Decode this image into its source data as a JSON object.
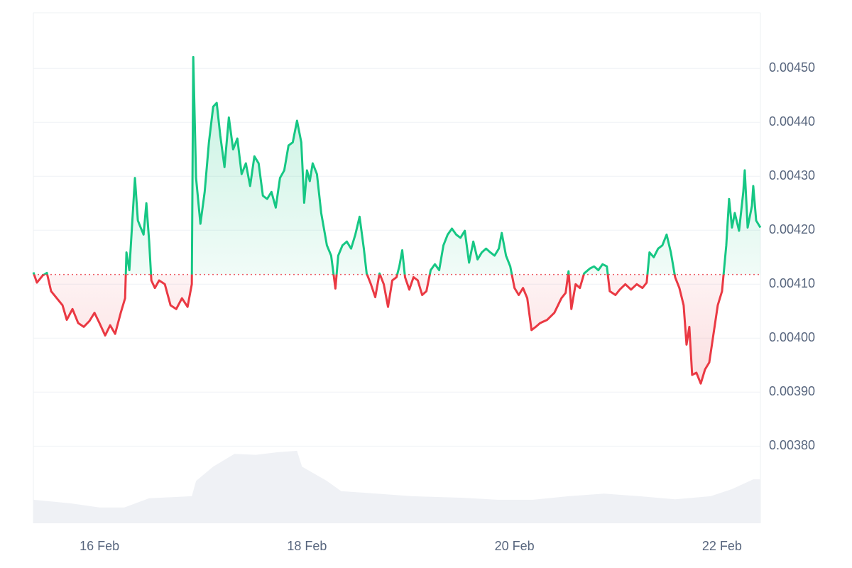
{
  "chart_data": {
    "type": "line",
    "x": [
      15.363,
      15.397,
      15.452,
      15.493,
      15.534,
      15.589,
      15.644,
      15.685,
      15.74,
      15.795,
      15.849,
      15.904,
      15.952,
      16.0,
      16.055,
      16.103,
      16.151,
      16.205,
      16.247,
      16.26,
      16.288,
      16.315,
      16.342,
      16.37,
      16.397,
      16.425,
      16.452,
      16.479,
      16.5,
      16.534,
      16.575,
      16.63,
      16.685,
      16.74,
      16.795,
      16.849,
      16.89,
      16.904,
      16.931,
      16.973,
      17.014,
      17.055,
      17.096,
      17.13,
      17.164,
      17.205,
      17.247,
      17.288,
      17.329,
      17.37,
      17.411,
      17.452,
      17.493,
      17.534,
      17.575,
      17.616,
      17.658,
      17.699,
      17.74,
      17.781,
      17.822,
      17.863,
      17.904,
      17.945,
      17.973,
      18.0,
      18.027,
      18.055,
      18.096,
      18.137,
      18.192,
      18.233,
      18.274,
      18.301,
      18.342,
      18.384,
      18.425,
      18.466,
      18.507,
      18.548,
      18.575,
      18.616,
      18.658,
      18.699,
      18.74,
      18.781,
      18.822,
      18.863,
      18.89,
      18.918,
      18.945,
      18.986,
      19.027,
      19.068,
      19.11,
      19.151,
      19.192,
      19.233,
      19.274,
      19.315,
      19.356,
      19.397,
      19.438,
      19.479,
      19.521,
      19.562,
      19.603,
      19.644,
      19.685,
      19.726,
      19.767,
      19.808,
      19.849,
      19.877,
      19.918,
      19.959,
      20.0,
      20.041,
      20.082,
      20.123,
      20.164,
      20.205,
      20.247,
      20.315,
      20.384,
      20.452,
      20.493,
      20.521,
      20.548,
      20.589,
      20.63,
      20.671,
      20.726,
      20.767,
      20.808,
      20.849,
      20.89,
      20.918,
      20.973,
      21.014,
      21.068,
      21.123,
      21.178,
      21.233,
      21.274,
      21.301,
      21.342,
      21.384,
      21.425,
      21.466,
      21.507,
      21.548,
      21.589,
      21.63,
      21.658,
      21.685,
      21.712,
      21.753,
      21.795,
      21.836,
      21.877,
      21.918,
      21.959,
      22.0,
      22.041,
      22.068,
      22.096,
      22.123,
      22.164,
      22.205,
      22.219,
      22.247,
      22.288,
      22.301,
      22.329,
      22.37
    ],
    "values": [
      0.004122,
      0.004103,
      0.004116,
      0.004121,
      0.004087,
      0.004074,
      0.004061,
      0.004034,
      0.004054,
      0.004028,
      0.004021,
      0.004032,
      0.004047,
      0.004028,
      0.004005,
      0.004024,
      0.004008,
      0.004047,
      0.004074,
      0.004159,
      0.004126,
      0.004212,
      0.004297,
      0.004218,
      0.004205,
      0.004192,
      0.00425,
      0.004179,
      0.004107,
      0.004093,
      0.004107,
      0.0041,
      0.004061,
      0.004054,
      0.004074,
      0.004058,
      0.0041,
      0.004521,
      0.004297,
      0.004212,
      0.004271,
      0.004363,
      0.004429,
      0.004436,
      0.004376,
      0.004317,
      0.004409,
      0.00435,
      0.00437,
      0.004304,
      0.004324,
      0.004282,
      0.004337,
      0.004324,
      0.004264,
      0.004258,
      0.004271,
      0.004242,
      0.004297,
      0.004311,
      0.004357,
      0.004363,
      0.004403,
      0.004363,
      0.004251,
      0.004311,
      0.004291,
      0.004324,
      0.004304,
      0.004232,
      0.004172,
      0.004153,
      0.004092,
      0.004153,
      0.004172,
      0.004179,
      0.004166,
      0.004192,
      0.004225,
      0.004166,
      0.00412,
      0.0041,
      0.004076,
      0.00412,
      0.0041,
      0.004058,
      0.004107,
      0.004113,
      0.004133,
      0.004163,
      0.004113,
      0.00409,
      0.004113,
      0.004107,
      0.00408,
      0.004087,
      0.004126,
      0.004137,
      0.004126,
      0.004172,
      0.004192,
      0.004203,
      0.004192,
      0.004186,
      0.004199,
      0.00414,
      0.004179,
      0.004146,
      0.004159,
      0.004166,
      0.004159,
      0.004153,
      0.004166,
      0.004195,
      0.004153,
      0.004133,
      0.004093,
      0.00408,
      0.004093,
      0.004074,
      0.004015,
      0.004021,
      0.004028,
      0.004034,
      0.004047,
      0.004074,
      0.004084,
      0.004124,
      0.004054,
      0.0041,
      0.004093,
      0.00412,
      0.004129,
      0.004133,
      0.004126,
      0.004137,
      0.004133,
      0.004087,
      0.00408,
      0.00409,
      0.0041,
      0.00409,
      0.0041,
      0.004093,
      0.004103,
      0.004159,
      0.00415,
      0.004166,
      0.004172,
      0.004192,
      0.004159,
      0.004113,
      0.004093,
      0.004061,
      0.003988,
      0.004021,
      0.003932,
      0.003936,
      0.003916,
      0.003942,
      0.003955,
      0.004008,
      0.004061,
      0.004087,
      0.004172,
      0.004258,
      0.004205,
      0.004232,
      0.004199,
      0.004271,
      0.004311,
      0.004205,
      0.004245,
      0.004282,
      0.004218,
      0.004205
    ],
    "baseline": 0.004118,
    "up_color": "#16c784",
    "down_color": "#ea3943",
    "xlim": [
      15.363,
      22.37
    ],
    "xticks": [
      {
        "value": 16,
        "label": "16 Feb"
      },
      {
        "value": 18,
        "label": "18 Feb"
      },
      {
        "value": 20,
        "label": "20 Feb"
      },
      {
        "value": 22,
        "label": "22 Feb"
      }
    ],
    "ylim": [
      0.003657,
      0.004603
    ],
    "yticks": [
      {
        "value": 0.0045,
        "label": "0.00450"
      },
      {
        "value": 0.0044,
        "label": "0.00440"
      },
      {
        "value": 0.0043,
        "label": "0.00430"
      },
      {
        "value": 0.0042,
        "label": "0.00420"
      },
      {
        "value": 0.0041,
        "label": "0.00410"
      },
      {
        "value": 0.004,
        "label": "0.00400"
      },
      {
        "value": 0.0039,
        "label": "0.00390"
      },
      {
        "value": 0.0038,
        "label": "0.00380"
      }
    ],
    "grid": true,
    "volume": {
      "axis": "y2",
      "color": "#eff1f5",
      "x": [
        15.363,
        15.726,
        16.0,
        16.24,
        16.479,
        16.89,
        16.931,
        17.096,
        17.301,
        17.507,
        17.712,
        17.904,
        17.952,
        18.192,
        18.329,
        18.671,
        19.014,
        19.493,
        19.836,
        20.178,
        20.521,
        20.863,
        21.205,
        21.548,
        21.89,
        22.096,
        22.301,
        22.37
      ],
      "values": [
        4.6,
        3.9,
        3.1,
        3.1,
        4.9,
        5.3,
        8.3,
        11.1,
        13.6,
        13.4,
        13.9,
        14.2,
        11.1,
        8.3,
        6.3,
        5.8,
        5.3,
        5.0,
        4.6,
        4.6,
        5.3,
        5.8,
        5.3,
        4.7,
        5.3,
        6.7,
        8.6,
        8.6
      ]
    },
    "y2lim": [
      0,
      100
    ]
  }
}
